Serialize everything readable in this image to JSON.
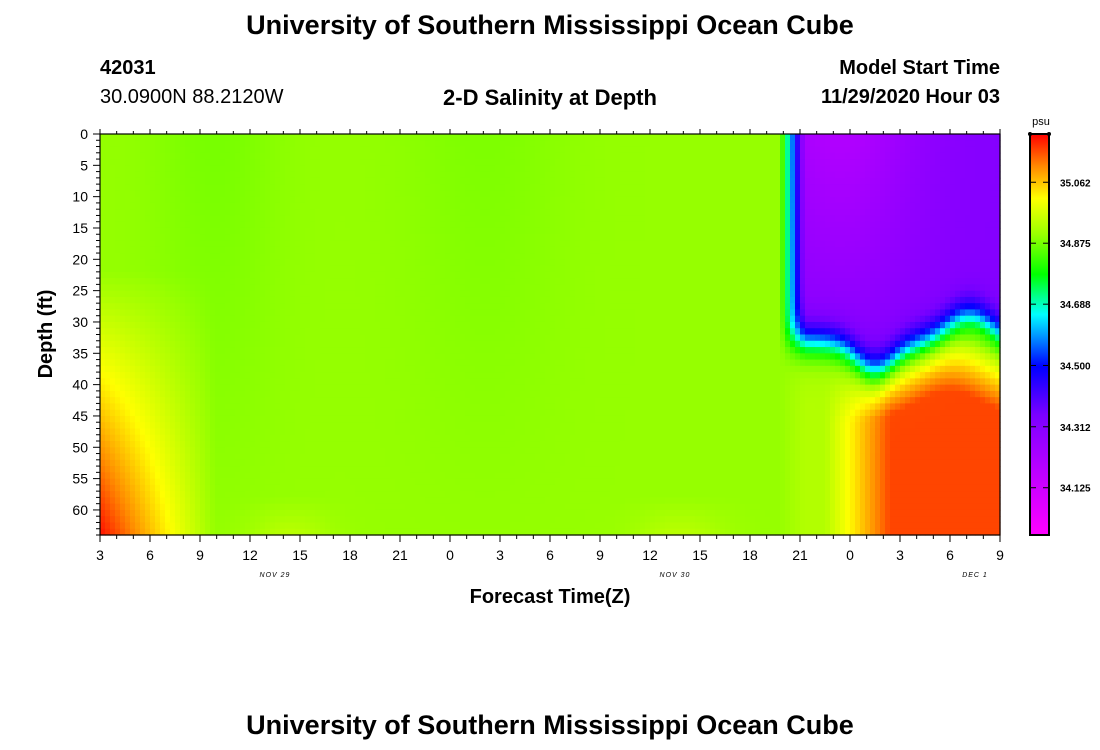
{
  "header": {
    "title_top": "University of Southern Mississippi Ocean Cube",
    "title_bottom": "University of Southern Mississippi Ocean Cube",
    "station_id": "42031",
    "location": "30.0900N 88.2120W",
    "plot_title": "2-D Salinity at Depth",
    "model_start_label": "Model Start Time",
    "model_start_value": "11/29/2020 Hour 03"
  },
  "chart_data": {
    "type": "heatmap",
    "title": "2-D Salinity at Depth",
    "xlabel": "Forecast Time(Z)",
    "ylabel": "Depth (ft)",
    "x_ticks": [
      "3",
      "6",
      "9",
      "12",
      "15",
      "18",
      "21",
      "0",
      "3",
      "6",
      "9",
      "12",
      "15",
      "18",
      "21",
      "0",
      "3",
      "6",
      "9"
    ],
    "x_date_labels": [
      {
        "label": "NOV 29",
        "at_tick": 3.5
      },
      {
        "label": "NOV 30",
        "at_tick": 11.5
      },
      {
        "label": "DEC 1",
        "at_tick": 17.5
      }
    ],
    "y_ticks": [
      "0",
      "5",
      "10",
      "15",
      "20",
      "25",
      "30",
      "35",
      "40",
      "45",
      "50",
      "55",
      "60"
    ],
    "ylim": [
      0,
      64
    ],
    "y_inverted": true,
    "colorbar": {
      "unit": "psu",
      "min": 33.98,
      "max": 35.21,
      "tick_values": [
        "35.062",
        "34.875",
        "34.688",
        "34.500",
        "34.312",
        "34.125"
      ],
      "colors": [
        "#ff00ff",
        "#9900ff",
        "#0000ff",
        "#00ffff",
        "#00ff00",
        "#ffff00",
        "#ff8800",
        "#ff0000"
      ]
    },
    "approx_field": [
      {
        "region": "hours 3-9, depth 0-25 ft",
        "salinity": 34.88
      },
      {
        "region": "hours 3-9, depth 40-64 ft",
        "salinity": 35.1
      },
      {
        "region": "Nov 29 12Z - Nov 30 21Z, all depths",
        "salinity": 34.9
      },
      {
        "region": "after Nov 30 21Z, depth 0-30 ft",
        "salinity": 34.2
      },
      {
        "region": "Dec 1 0-9Z, depth 45-64 ft",
        "salinity": 35.15
      }
    ]
  }
}
